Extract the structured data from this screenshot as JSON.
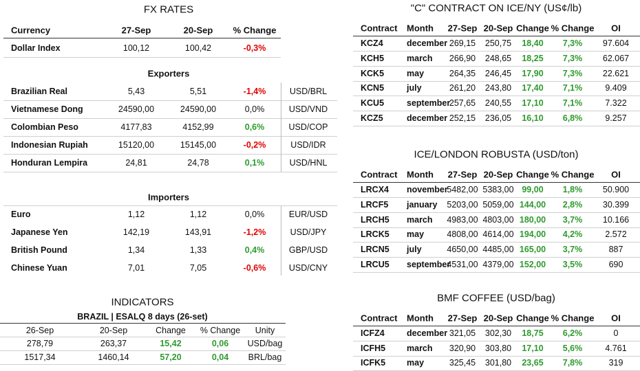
{
  "fx_rates": {
    "title": "FX RATES",
    "header": [
      "Currency",
      "27-Sep",
      "20-Sep",
      "% Change"
    ],
    "dollar_row": [
      "Dollar Index",
      "100,12",
      "100,42",
      "-0,3%"
    ],
    "exporters": {
      "title": "Exporters",
      "rows": [
        [
          "Brazilian Real",
          "5,43",
          "5,51",
          "-1,4%",
          "USD/BRL"
        ],
        [
          "Vietnamese Dong",
          "24590,00",
          "24590,00",
          "0,0%",
          "USD/VND"
        ],
        [
          "Colombian Peso",
          "4177,83",
          "4152,99",
          "0,6%",
          "USD/COP"
        ],
        [
          "Indonesian Rupiah",
          "15120,00",
          "15145,00",
          "-0,2%",
          "USD/IDR"
        ],
        [
          "Honduran Lempira",
          "24,81",
          "24,78",
          "0,1%",
          "USD/HNL"
        ]
      ]
    },
    "importers": {
      "title": "Importers",
      "rows": [
        [
          "Euro",
          "1,12",
          "1,12",
          "0,0%",
          "EUR/USD"
        ],
        [
          "Japanese Yen",
          "142,19",
          "143,91",
          "-1,2%",
          "USD/JPY"
        ],
        [
          "British Pound",
          "1,34",
          "1,33",
          "0,4%",
          "GBP/USD"
        ],
        [
          "Chinese Yuan",
          "7,01",
          "7,05",
          "-0,6%",
          "USD/CNY"
        ]
      ]
    }
  },
  "indicators": {
    "title": "INDICATORS",
    "subtitle": "BRAZIL | ESALQ 8 days (26-set)",
    "header": [
      "26-Sep",
      "20-Sep",
      "Change",
      "% Change",
      "Unity"
    ],
    "rows": [
      [
        "278,79",
        "263,37",
        "15,42",
        "0,06",
        "USD/bag"
      ],
      [
        "1517,34",
        "1460,14",
        "57,20",
        "0,04",
        "BRL/bag"
      ]
    ]
  },
  "c_contract": {
    "title": "\"C\" CONTRACT ON ICE/NY (US¢/lb)",
    "header": [
      "Contract",
      "Month",
      "27-Sep",
      "20-Sep",
      "Change",
      "% Change",
      "OI"
    ],
    "rows": [
      [
        "KCZ4",
        "december",
        "269,15",
        "250,75",
        "18,40",
        "7,3%",
        "97.604"
      ],
      [
        "KCH5",
        "march",
        "266,90",
        "248,65",
        "18,25",
        "7,3%",
        "62.067"
      ],
      [
        "KCK5",
        "may",
        "264,35",
        "246,45",
        "17,90",
        "7,3%",
        "22.621"
      ],
      [
        "KCN5",
        "july",
        "261,20",
        "243,80",
        "17,40",
        "7,1%",
        "9.409"
      ],
      [
        "KCU5",
        "september",
        "257,65",
        "240,55",
        "17,10",
        "7,1%",
        "7.322"
      ],
      [
        "KCZ5",
        "december",
        "252,15",
        "236,05",
        "16,10",
        "6,8%",
        "9.257"
      ]
    ]
  },
  "robusta": {
    "title": "ICE/LONDON ROBUSTA (USD/ton)",
    "header": [
      "Contract",
      "Month",
      "27-Sep",
      "20-Sep",
      "Change",
      "% Change",
      "OI"
    ],
    "rows": [
      [
        "LRCX4",
        "november",
        "5482,00",
        "5383,00",
        "99,00",
        "1,8%",
        "50.900"
      ],
      [
        "LRCF5",
        "january",
        "5203,00",
        "5059,00",
        "144,00",
        "2,8%",
        "30.399"
      ],
      [
        "LRCH5",
        "march",
        "4983,00",
        "4803,00",
        "180,00",
        "3,7%",
        "10.166"
      ],
      [
        "LRCK5",
        "may",
        "4808,00",
        "4614,00",
        "194,00",
        "4,2%",
        "2.572"
      ],
      [
        "LRCN5",
        "july",
        "4650,00",
        "4485,00",
        "165,00",
        "3,7%",
        "887"
      ],
      [
        "LRCU5",
        "september",
        "4531,00",
        "4379,00",
        "152,00",
        "3,5%",
        "690"
      ]
    ]
  },
  "bmf": {
    "title": "BMF COFFEE (USD/bag)",
    "header": [
      "Contract",
      "Month",
      "27-Sep",
      "20-Sep",
      "Change",
      "% Change",
      "OI"
    ],
    "rows": [
      [
        "ICFZ4",
        "december",
        "321,05",
        "302,30",
        "18,75",
        "6,2%",
        "0"
      ],
      [
        "ICFH5",
        "march",
        "320,90",
        "303,80",
        "17,10",
        "5,6%",
        "4.761"
      ],
      [
        "ICFK5",
        "may",
        "325,45",
        "301,80",
        "23,65",
        "7,8%",
        "319"
      ]
    ]
  }
}
